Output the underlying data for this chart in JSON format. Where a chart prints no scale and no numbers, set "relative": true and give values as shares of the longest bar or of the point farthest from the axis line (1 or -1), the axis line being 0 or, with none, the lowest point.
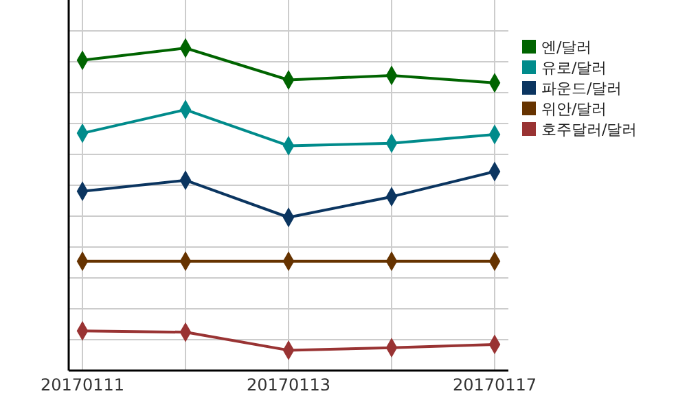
{
  "chart_data": {
    "type": "line",
    "relative": true,
    "categories": [
      "20170111",
      null,
      "20170113",
      null,
      "20170117"
    ],
    "grid": true,
    "legend": "right",
    "marker": "diamond",
    "line_style": "solid",
    "series": [
      {
        "name": "엔/달러",
        "color": "#006400",
        "values": [
          0.962,
          1,
          0.901,
          0.915,
          0.892
        ]
      },
      {
        "name": "유로/달러",
        "color": "#008b8b",
        "values": [
          0.736,
          0.809,
          0.697,
          0.705,
          0.732
        ]
      },
      {
        "name": "파운드/달러",
        "color": "#0b3560",
        "values": [
          0.556,
          0.59,
          0.475,
          0.539,
          0.617
        ]
      },
      {
        "name": "위안/달러",
        "color": "#663300",
        "values": [
          0.339,
          0.339,
          0.339,
          0.339,
          0.339
        ]
      },
      {
        "name": "호주달러/달러",
        "color": "#993333",
        "values": [
          0.123,
          0.119,
          0.063,
          0.071,
          0.081
        ]
      }
    ]
  }
}
